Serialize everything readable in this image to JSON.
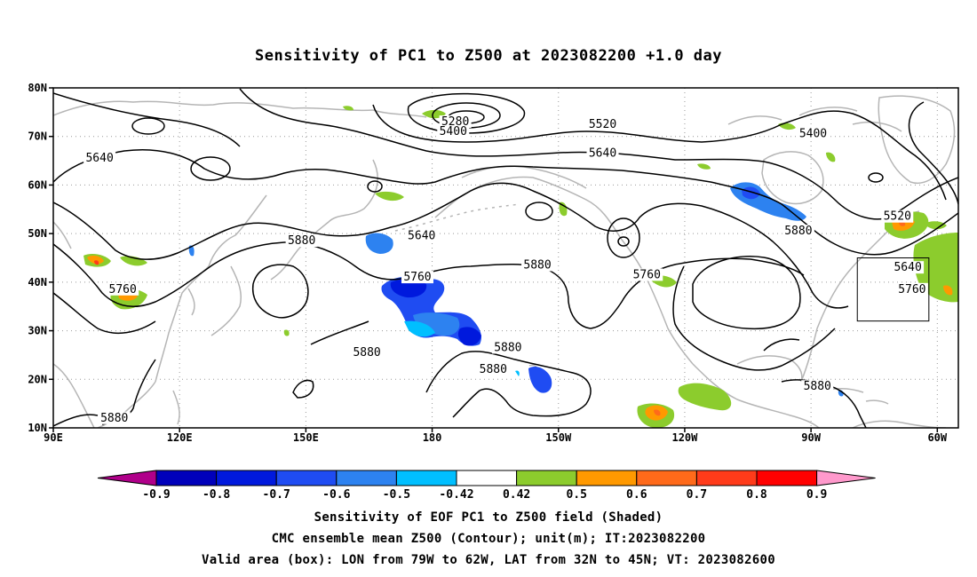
{
  "title": "Sensitivity of PC1 to Z500 at 2023082200 +1.0 day",
  "map": {
    "lon_range": [
      90,
      305
    ],
    "lat_range": [
      10,
      80
    ],
    "lat_ticks": [
      {
        "value": 80,
        "label": "80N"
      },
      {
        "value": 70,
        "label": "70N"
      },
      {
        "value": 60,
        "label": "60N"
      },
      {
        "value": 50,
        "label": "50N"
      },
      {
        "value": 40,
        "label": "40N"
      },
      {
        "value": 30,
        "label": "30N"
      },
      {
        "value": 20,
        "label": "20N"
      },
      {
        "value": 10,
        "label": "10N"
      }
    ],
    "lon_ticks": [
      {
        "value": 90,
        "label": "90E"
      },
      {
        "value": 120,
        "label": "120E"
      },
      {
        "value": 150,
        "label": "150E"
      },
      {
        "value": 180,
        "label": "180"
      },
      {
        "value": 210,
        "label": "150W"
      },
      {
        "value": 240,
        "label": "120W"
      },
      {
        "value": 270,
        "label": "90W"
      },
      {
        "value": 300,
        "label": "60W"
      }
    ],
    "grid": "dotted",
    "valid_box": {
      "lon_min": 281,
      "lon_max": 298,
      "lat_min": 32,
      "lat_max": 45
    },
    "contour_labels": [
      {
        "text": "5280",
        "lon": 185.5,
        "lat": 72.5
      },
      {
        "text": "5400",
        "lon": 185,
        "lat": 70.5
      },
      {
        "text": "5520",
        "lon": 220.5,
        "lat": 72
      },
      {
        "text": "5400",
        "lon": 270.5,
        "lat": 70
      },
      {
        "text": "5640",
        "lon": 101,
        "lat": 65
      },
      {
        "text": "5640",
        "lon": 220.5,
        "lat": 66
      },
      {
        "text": "5520",
        "lon": 290.5,
        "lat": 53
      },
      {
        "text": "5640",
        "lon": 177.5,
        "lat": 49
      },
      {
        "text": "5880",
        "lon": 149,
        "lat": 48
      },
      {
        "text": "5880",
        "lon": 267,
        "lat": 50
      },
      {
        "text": "5640",
        "lon": 293,
        "lat": 42.5
      },
      {
        "text": "5760",
        "lon": 176.5,
        "lat": 40.5
      },
      {
        "text": "5880",
        "lon": 205,
        "lat": 43
      },
      {
        "text": "5760",
        "lon": 231,
        "lat": 41
      },
      {
        "text": "5760",
        "lon": 106.5,
        "lat": 38
      },
      {
        "text": "5760",
        "lon": 294,
        "lat": 38
      },
      {
        "text": "5880",
        "lon": 164.5,
        "lat": 25
      },
      {
        "text": "5880",
        "lon": 198,
        "lat": 26
      },
      {
        "text": "5880",
        "lon": 194.5,
        "lat": 21.5
      },
      {
        "text": "5880",
        "lon": 271.5,
        "lat": 18
      },
      {
        "text": "5880",
        "lon": 104.5,
        "lat": 11.5
      }
    ]
  },
  "colorbar": {
    "ticks": [
      "-0.9",
      "-0.8",
      "-0.7",
      "-0.6",
      "-0.5",
      "-0.42",
      "0.42",
      "0.5",
      "0.6",
      "0.7",
      "0.8",
      "0.9"
    ],
    "colors": [
      "#b0008a",
      "#0000bb",
      "#0019dd",
      "#1f4cf2",
      "#2d82f0",
      "#00bfff",
      "#ffffff",
      "#8ccc2d",
      "#ff9900",
      "#ff6a1a",
      "#ff3b1a",
      "#ff0000",
      "#ff99cc"
    ]
  },
  "captions": {
    "line1": "Sensitivity of EOF PC1 to Z500 field (Shaded)",
    "line2": "CMC ensemble mean Z500 (Contour); unit(m); IT:2023082200",
    "line3": "Valid area (box): LON from 79W to 62W, LAT from 32N to 45N; VT: 2023082600"
  }
}
